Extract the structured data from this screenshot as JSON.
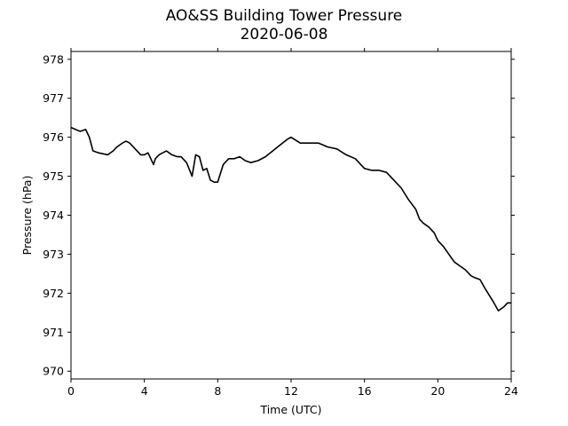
{
  "chart_data": {
    "type": "line",
    "title": "AO&SS Building Tower Pressure",
    "subtitle": "2020-06-08",
    "xlabel": "Time (UTC)",
    "ylabel": "Pressure (hPa)",
    "xlim": [
      0,
      24
    ],
    "ylim": [
      969.8,
      978.2
    ],
    "xticks": [
      0,
      4,
      8,
      12,
      16,
      20,
      24
    ],
    "yticks": [
      970,
      971,
      972,
      973,
      974,
      975,
      976,
      977,
      978
    ],
    "grid": false,
    "line_color": "#000000",
    "series": [
      {
        "x": [
          0,
          0.25,
          0.5,
          0.8,
          1.0,
          1.2,
          1.5,
          2.0,
          2.3,
          2.5,
          2.8,
          3.0,
          3.2,
          3.5,
          3.8,
          4.0,
          4.2,
          4.5,
          4.6,
          4.8,
          5.0,
          5.2,
          5.5,
          5.8,
          6.0,
          6.3,
          6.6,
          6.8,
          7.0,
          7.2,
          7.4,
          7.6,
          7.8,
          8.0,
          8.3,
          8.6,
          8.9,
          9.2,
          9.5,
          9.8,
          10.2,
          10.6,
          11.0,
          11.4,
          11.8,
          12.0,
          12.5,
          13.0,
          13.5,
          14.0,
          14.5,
          15.0,
          15.5,
          16.0,
          16.4,
          16.8,
          17.2,
          17.6,
          18.0,
          18.4,
          18.8,
          19.0,
          19.2,
          19.5,
          19.8,
          20.0,
          20.3,
          20.6,
          20.9,
          21.2,
          21.5,
          21.8,
          22.0,
          22.3,
          22.6,
          23.0,
          23.3,
          23.6,
          23.8,
          24.0
        ],
        "y": [
          976.25,
          976.2,
          976.15,
          976.2,
          976.0,
          975.65,
          975.6,
          975.55,
          975.65,
          975.75,
          975.85,
          975.9,
          975.85,
          975.7,
          975.55,
          975.55,
          975.6,
          975.3,
          975.45,
          975.55,
          975.6,
          975.65,
          975.55,
          975.5,
          975.5,
          975.35,
          975.0,
          975.55,
          975.5,
          975.15,
          975.2,
          974.9,
          974.85,
          974.85,
          975.3,
          975.45,
          975.45,
          975.5,
          975.4,
          975.35,
          975.4,
          975.5,
          975.65,
          975.8,
          975.95,
          976.0,
          975.85,
          975.85,
          975.85,
          975.75,
          975.7,
          975.55,
          975.45,
          975.2,
          975.15,
          975.15,
          975.1,
          974.9,
          974.7,
          974.4,
          974.15,
          973.9,
          973.8,
          973.7,
          973.55,
          973.35,
          973.2,
          973.0,
          972.8,
          972.7,
          972.6,
          972.45,
          972.4,
          972.35,
          972.1,
          971.8,
          971.55,
          971.65,
          971.75,
          971.75
        ]
      }
    ]
  }
}
